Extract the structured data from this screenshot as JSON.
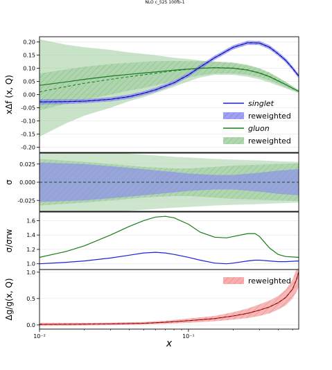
{
  "title": "NLO c_525 100fb-1",
  "colors": {
    "singlet": "#1f1fdc",
    "singlet_band": "#8a8af0",
    "gluon": "#1a7a1a",
    "gluon_band": "#9ccc9c",
    "reweighted_red": "#e83030",
    "red_band": "#f4a0a0",
    "grid": "#e6e6e6"
  },
  "chart_data": [
    {
      "type": "area",
      "panel": "top",
      "ylabel": "xΔf (x, Q)",
      "xscale": "log",
      "xlim": [
        0.01,
        0.55
      ],
      "ylim": [
        -0.22,
        0.22
      ],
      "yticks": [
        "0.20",
        "0.15",
        "0.10",
        "0.05",
        "0.00",
        "-0.05",
        "-0.10",
        "-0.15",
        "-0.20"
      ],
      "ytick_values": [
        0.2,
        0.15,
        0.1,
        0.05,
        0.0,
        -0.05,
        -0.1,
        -0.15,
        -0.2
      ],
      "x": [
        0.01,
        0.015,
        0.02,
        0.03,
        0.04,
        0.05,
        0.06,
        0.08,
        0.1,
        0.12,
        0.15,
        0.2,
        0.25,
        0.3,
        0.35,
        0.4,
        0.45,
        0.5,
        0.55
      ],
      "series": [
        {
          "name": "singlet",
          "style": "line",
          "values": [
            -0.028,
            -0.027,
            -0.025,
            -0.018,
            -0.008,
            0.005,
            0.018,
            0.045,
            0.075,
            0.105,
            0.14,
            0.18,
            0.197,
            0.196,
            0.18,
            0.155,
            0.13,
            0.1,
            0.07
          ],
          "band_lo": [
            -0.038,
            -0.036,
            -0.033,
            -0.026,
            -0.016,
            -0.003,
            0.01,
            0.037,
            0.067,
            0.097,
            0.132,
            0.172,
            0.189,
            0.188,
            0.172,
            0.147,
            0.122,
            0.092,
            0.062
          ],
          "band_hi": [
            -0.018,
            -0.018,
            -0.017,
            -0.01,
            0.0,
            0.013,
            0.026,
            0.053,
            0.083,
            0.113,
            0.148,
            0.188,
            0.205,
            0.204,
            0.188,
            0.163,
            0.138,
            0.108,
            0.078
          ]
        },
        {
          "name": "singlet reweighted",
          "style": "dashed",
          "values": [
            -0.028,
            -0.027,
            -0.025,
            -0.018,
            -0.008,
            0.005,
            0.018,
            0.045,
            0.075,
            0.105,
            0.14,
            0.18,
            0.197,
            0.196,
            0.18,
            0.155,
            0.13,
            0.1,
            0.07
          ]
        },
        {
          "name": "gluon",
          "style": "line",
          "values": [
            0.035,
            0.048,
            0.058,
            0.07,
            0.077,
            0.082,
            0.086,
            0.093,
            0.097,
            0.1,
            0.102,
            0.1,
            0.093,
            0.082,
            0.068,
            0.052,
            0.038,
            0.024,
            0.012
          ],
          "band_lo": [
            -0.16,
            -0.11,
            -0.08,
            -0.05,
            -0.025,
            -0.01,
            0.005,
            0.03,
            0.05,
            0.065,
            0.075,
            0.075,
            0.068,
            0.058,
            0.046,
            0.034,
            0.024,
            0.014,
            0.006
          ],
          "band_hi": [
            0.21,
            0.19,
            0.18,
            0.17,
            0.16,
            0.155,
            0.15,
            0.14,
            0.135,
            0.13,
            0.125,
            0.12,
            0.11,
            0.098,
            0.082,
            0.064,
            0.048,
            0.032,
            0.018
          ]
        },
        {
          "name": "gluon reweighted",
          "style": "dashed",
          "values": [
            0.01,
            0.03,
            0.043,
            0.058,
            0.068,
            0.075,
            0.081,
            0.09,
            0.096,
            0.1,
            0.103,
            0.101,
            0.094,
            0.083,
            0.069,
            0.053,
            0.038,
            0.024,
            0.012
          ],
          "band_lo": [
            -0.06,
            -0.035,
            -0.02,
            0.0,
            0.015,
            0.025,
            0.035,
            0.052,
            0.065,
            0.073,
            0.08,
            0.08,
            0.075,
            0.066,
            0.054,
            0.04,
            0.028,
            0.017,
            0.008
          ],
          "band_hi": [
            0.08,
            0.095,
            0.106,
            0.116,
            0.121,
            0.125,
            0.127,
            0.128,
            0.127,
            0.127,
            0.126,
            0.122,
            0.113,
            0.1,
            0.084,
            0.066,
            0.048,
            0.031,
            0.016
          ]
        }
      ],
      "legend": {
        "placement": "lower-right",
        "entries": [
          {
            "label": "singlet",
            "kind": "line",
            "color": "singlet",
            "italic": true
          },
          {
            "label": "reweighted",
            "kind": "band",
            "color": "singlet_band",
            "italic": false
          },
          {
            "label": "gluon",
            "kind": "line",
            "color": "gluon",
            "italic": true
          },
          {
            "label": "reweighted",
            "kind": "band",
            "color": "gluon_band",
            "italic": false
          }
        ]
      }
    },
    {
      "type": "area",
      "panel": "sigma",
      "ylabel": "σ",
      "xscale": "log",
      "ylim": [
        -0.04,
        0.04
      ],
      "yticks": [
        "0.025",
        "0.000",
        "-0.025"
      ],
      "ytick_values": [
        0.025,
        0.0,
        -0.025
      ],
      "x": [
        0.01,
        0.02,
        0.03,
        0.05,
        0.08,
        0.1,
        0.15,
        0.2,
        0.3,
        0.4,
        0.55
      ],
      "bands": [
        {
          "name": "gluon",
          "half_width": [
            0.045,
            0.043,
            0.041,
            0.038,
            0.035,
            0.034,
            0.032,
            0.031,
            0.03,
            0.029,
            0.028
          ]
        },
        {
          "name": "gluon reweighted",
          "half_width": [
            0.032,
            0.028,
            0.025,
            0.021,
            0.019,
            0.019,
            0.021,
            0.023,
            0.024,
            0.025,
            0.026
          ]
        },
        {
          "name": "singlet",
          "half_width": [
            0.027,
            0.025,
            0.022,
            0.018,
            0.014,
            0.012,
            0.01,
            0.01,
            0.013,
            0.016,
            0.018
          ]
        }
      ]
    },
    {
      "type": "line",
      "panel": "ratio",
      "ylabel": "σ/σrw",
      "xscale": "log",
      "ylim": [
        0.92,
        1.72
      ],
      "yticks": [
        "1.6",
        "1.4",
        "1.2",
        "1.0"
      ],
      "ytick_values": [
        1.6,
        1.4,
        1.2,
        1.0
      ],
      "x": [
        0.01,
        0.015,
        0.02,
        0.03,
        0.04,
        0.05,
        0.06,
        0.07,
        0.08,
        0.1,
        0.12,
        0.15,
        0.18,
        0.2,
        0.25,
        0.28,
        0.3,
        0.35,
        0.4,
        0.45,
        0.55
      ],
      "series": [
        {
          "name": "gluon",
          "values": [
            1.09,
            1.17,
            1.25,
            1.4,
            1.52,
            1.6,
            1.65,
            1.66,
            1.64,
            1.55,
            1.44,
            1.37,
            1.36,
            1.38,
            1.42,
            1.42,
            1.38,
            1.22,
            1.13,
            1.1,
            1.09
          ]
        },
        {
          "name": "singlet",
          "values": [
            1.0,
            1.02,
            1.04,
            1.08,
            1.12,
            1.15,
            1.16,
            1.15,
            1.13,
            1.09,
            1.05,
            1.01,
            1.0,
            1.01,
            1.04,
            1.05,
            1.05,
            1.04,
            1.03,
            1.03,
            1.04
          ]
        }
      ]
    },
    {
      "type": "area",
      "panel": "delta",
      "ylabel": "Δg/g(x, Q)",
      "xlabel": "x",
      "xscale": "log",
      "ylim": [
        -0.08,
        1.05
      ],
      "yticks": [
        "1.0",
        "0.5",
        "0.0"
      ],
      "ytick_values": [
        1.0,
        0.5,
        0.0
      ],
      "xticks": [
        "10⁻²",
        "10⁻¹"
      ],
      "xtick_values": [
        0.01,
        0.1
      ],
      "x": [
        0.01,
        0.02,
        0.03,
        0.05,
        0.07,
        0.1,
        0.15,
        0.2,
        0.25,
        0.3,
        0.35,
        0.4,
        0.45,
        0.5,
        0.53,
        0.55
      ],
      "series": [
        {
          "name": "reweighted",
          "values": [
            0.01,
            0.015,
            0.02,
            0.03,
            0.05,
            0.08,
            0.12,
            0.17,
            0.22,
            0.28,
            0.34,
            0.42,
            0.52,
            0.68,
            0.85,
            1.0
          ],
          "band_lo": [
            -0.02,
            -0.01,
            -0.005,
            0.005,
            0.02,
            0.04,
            0.07,
            0.1,
            0.13,
            0.17,
            0.22,
            0.29,
            0.37,
            0.5,
            0.62,
            0.72
          ],
          "band_hi": [
            0.04,
            0.04,
            0.045,
            0.055,
            0.08,
            0.12,
            0.17,
            0.24,
            0.31,
            0.39,
            0.46,
            0.55,
            0.67,
            0.86,
            1.05,
            1.1
          ]
        }
      ],
      "legend": {
        "placement": "top-right",
        "entries": [
          {
            "label": "reweighted",
            "kind": "band",
            "color": "red_band"
          }
        ]
      }
    }
  ]
}
